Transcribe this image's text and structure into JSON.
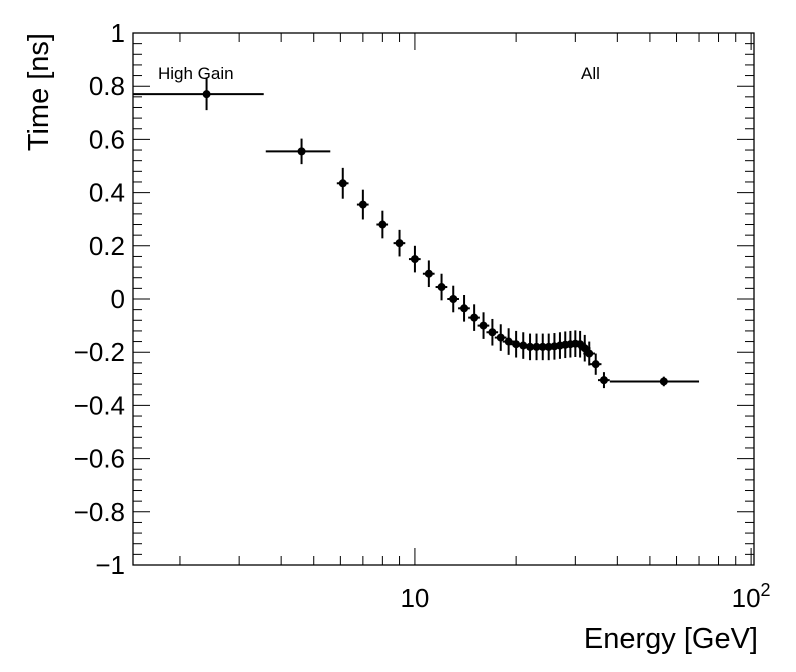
{
  "chart_data": {
    "type": "scatter",
    "xscale": "log",
    "xlabel": "Energy [GeV]",
    "ylabel": "Time [ns]",
    "xlim": [
      1.45,
      102
    ],
    "ylim": [
      -1,
      1
    ],
    "annotations": {
      "left": "High Gain",
      "right": "All"
    },
    "xtick_labels": [
      {
        "value": 10,
        "base": "10",
        "exp": ""
      },
      {
        "value": 100,
        "base": "10",
        "exp": "2"
      }
    ],
    "ytick_labels": [
      {
        "value": 1,
        "label": "1"
      },
      {
        "value": 0.8,
        "label": "0.8"
      },
      {
        "value": 0.6,
        "label": "0.6"
      },
      {
        "value": 0.4,
        "label": "0.4"
      },
      {
        "value": 0.2,
        "label": "0.2"
      },
      {
        "value": 0,
        "label": "0"
      },
      {
        "value": -0.2,
        "label": "−0.2"
      },
      {
        "value": -0.4,
        "label": "−0.4"
      },
      {
        "value": -0.6,
        "label": "−0.6"
      },
      {
        "value": -0.8,
        "label": "−0.8"
      },
      {
        "value": -1,
        "label": "−1"
      }
    ],
    "points": [
      {
        "x": 2.4,
        "xlo": 1.45,
        "xhi": 3.55,
        "y": 0.77,
        "yerr": 0.06
      },
      {
        "x": 4.6,
        "xlo": 3.6,
        "xhi": 5.6,
        "y": 0.555,
        "yerr": 0.048
      },
      {
        "x": 6.1,
        "y": 0.435,
        "yerr": 0.058
      },
      {
        "x": 7.0,
        "y": 0.355,
        "yerr": 0.056
      },
      {
        "x": 8.0,
        "y": 0.28,
        "yerr": 0.052
      },
      {
        "x": 9.0,
        "y": 0.21,
        "yerr": 0.05
      },
      {
        "x": 10.0,
        "y": 0.15,
        "yerr": 0.05
      },
      {
        "x": 11.0,
        "y": 0.095,
        "yerr": 0.05
      },
      {
        "x": 12.0,
        "y": 0.045,
        "yerr": 0.05
      },
      {
        "x": 13.0,
        "y": 0.0,
        "yerr": 0.05
      },
      {
        "x": 14.0,
        "y": -0.035,
        "yerr": 0.05
      },
      {
        "x": 15.0,
        "y": -0.07,
        "yerr": 0.05
      },
      {
        "x": 16.0,
        "y": -0.1,
        "yerr": 0.05
      },
      {
        "x": 17.0,
        "y": -0.125,
        "yerr": 0.05
      },
      {
        "x": 18.0,
        "y": -0.145,
        "yerr": 0.05
      },
      {
        "x": 19.0,
        "y": -0.16,
        "yerr": 0.05
      },
      {
        "x": 20.0,
        "y": -0.17,
        "yerr": 0.05
      },
      {
        "x": 21.0,
        "y": -0.175,
        "yerr": 0.05
      },
      {
        "x": 22.0,
        "y": -0.18,
        "yerr": 0.05
      },
      {
        "x": 23.0,
        "y": -0.18,
        "yerr": 0.05
      },
      {
        "x": 24.0,
        "y": -0.18,
        "yerr": 0.05
      },
      {
        "x": 25.0,
        "y": -0.18,
        "yerr": 0.05
      },
      {
        "x": 26.0,
        "y": -0.178,
        "yerr": 0.05
      },
      {
        "x": 27.0,
        "y": -0.175,
        "yerr": 0.05
      },
      {
        "x": 28.0,
        "y": -0.172,
        "yerr": 0.05
      },
      {
        "x": 29.0,
        "y": -0.17,
        "yerr": 0.05
      },
      {
        "x": 30.0,
        "y": -0.168,
        "yerr": 0.05
      },
      {
        "x": 31.0,
        "y": -0.17,
        "yerr": 0.05
      },
      {
        "x": 32.0,
        "y": -0.185,
        "yerr": 0.05
      },
      {
        "x": 33.0,
        "y": -0.205,
        "yerr": 0.045
      },
      {
        "x": 34.5,
        "y": -0.245,
        "yerr": 0.04
      },
      {
        "x": 36.5,
        "y": -0.305,
        "yerr": 0.03
      },
      {
        "x": 55.0,
        "xlo": 38.0,
        "xhi": 70.0,
        "y": -0.31,
        "yerr": 0.018
      }
    ]
  }
}
